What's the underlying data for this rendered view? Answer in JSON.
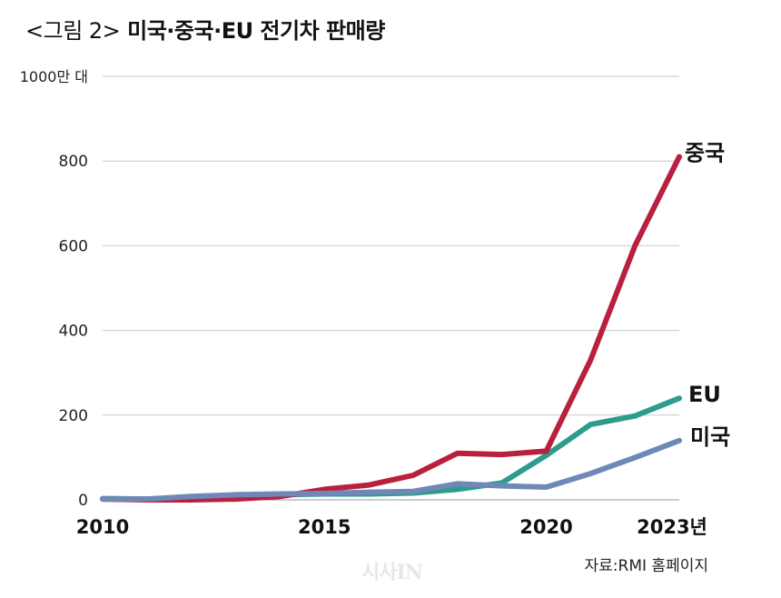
{
  "figure": {
    "title_prefix": "<그림 2>",
    "title_main": "미국·중국·EU 전기차 판매량",
    "source": "자료:RMI 홈페이지",
    "watermark": "시사IN"
  },
  "chart_data": {
    "type": "line",
    "title": "<그림 2> 미국·중국·EU 전기차 판매량",
    "ylabel": "1000만 대",
    "ylim": [
      0,
      1000
    ],
    "y_ticks": [
      0,
      200,
      400,
      600,
      800
    ],
    "y_top_label": "1000만 대",
    "xlim": [
      2010,
      2023
    ],
    "x_tick_labels": [
      {
        "x": 2010,
        "label": "2010"
      },
      {
        "x": 2015,
        "label": "2015"
      },
      {
        "x": 2020,
        "label": "2020"
      },
      {
        "x": 2023,
        "label": "2023년"
      }
    ],
    "grid": true,
    "legend": "inline labels at line ends",
    "x": [
      2010,
      2011,
      2012,
      2013,
      2014,
      2015,
      2016,
      2017,
      2018,
      2019,
      2020,
      2021,
      2022,
      2023
    ],
    "series": [
      {
        "name": "중국",
        "color": "#b8203e",
        "values": [
          2,
          0,
          0,
          2,
          8,
          25,
          35,
          58,
          110,
          107,
          115,
          330,
          600,
          810
        ]
      },
      {
        "name": "EU",
        "color": "#2d9c8c",
        "values": [
          3,
          2,
          5,
          8,
          12,
          14,
          14,
          16,
          25,
          40,
          105,
          178,
          198,
          240
        ]
      },
      {
        "name": "미국",
        "color": "#7088b8",
        "values": [
          2,
          2,
          8,
          12,
          14,
          15,
          18,
          20,
          38,
          33,
          30,
          62,
          100,
          140
        ]
      }
    ]
  }
}
